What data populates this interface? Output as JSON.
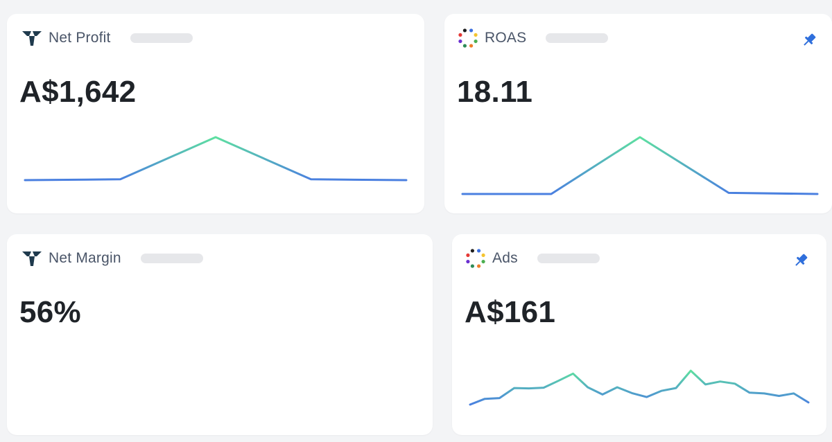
{
  "cards": [
    {
      "title": "Net Profit",
      "value": "A$1,642",
      "logo": "tw-logo-icon",
      "pinned": false,
      "sparkline": {
        "values": [
          0,
          0.02,
          1,
          0.02,
          0
        ]
      }
    },
    {
      "title": "ROAS",
      "value": "18.11",
      "logo": "multicolor-dots-icon",
      "pinned": true,
      "sparkline": {
        "values": [
          0,
          0,
          1,
          0.02,
          0
        ]
      }
    },
    {
      "title": "Net Margin",
      "value": "56%",
      "logo": "tw-logo-icon",
      "pinned": false,
      "sparkline": null
    },
    {
      "title": "Ads",
      "value": "A$161",
      "logo": "multicolor-dots-icon",
      "pinned": true,
      "sparkline": {
        "values": [
          0,
          0.16,
          0.18,
          0.46,
          0.45,
          0.47,
          0.66,
          0.86,
          0.48,
          0.28,
          0.48,
          0.32,
          0.21,
          0.38,
          0.46,
          0.94,
          0.56,
          0.64,
          0.58,
          0.33,
          0.31,
          0.24,
          0.31,
          0.06
        ]
      }
    }
  ],
  "colors": {
    "spark_start": "#4a7fe0",
    "spark_end": "#5ee0a0",
    "pin": "#2f6fdc",
    "dark_logo": "#1f3a4d"
  }
}
